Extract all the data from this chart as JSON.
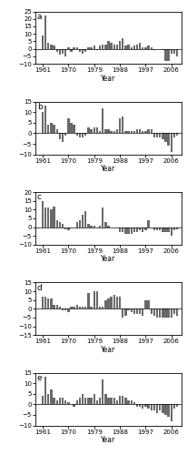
{
  "years": [
    1961,
    1962,
    1963,
    1964,
    1965,
    1966,
    1967,
    1968,
    1969,
    1970,
    1971,
    1972,
    1973,
    1974,
    1975,
    1976,
    1977,
    1978,
    1979,
    1980,
    1981,
    1982,
    1983,
    1984,
    1985,
    1986,
    1987,
    1988,
    1989,
    1990,
    1991,
    1992,
    1993,
    1994,
    1995,
    1996,
    1997,
    1998,
    1999,
    2000,
    2001,
    2002,
    2003,
    2004,
    2005,
    2006,
    2007,
    2008
  ],
  "zone_a": [
    9,
    22,
    4,
    3,
    2,
    -2,
    -4,
    -3,
    -5,
    1,
    -2,
    1,
    1,
    -2,
    -3,
    -2,
    1,
    1,
    2,
    -1,
    2,
    3,
    3,
    5,
    4,
    3,
    3,
    5,
    7,
    2,
    3,
    1,
    2,
    3,
    4,
    1,
    1,
    2,
    1,
    -1,
    0,
    0,
    -1,
    -8,
    -8,
    -3,
    -3,
    -5
  ],
  "zone_b": [
    10,
    13,
    4,
    5,
    4,
    2,
    -3,
    -4,
    -1,
    7,
    5,
    4,
    -1,
    -2,
    -2,
    -1,
    3,
    2,
    3,
    3,
    1,
    12,
    2,
    2,
    1,
    1,
    2,
    7,
    8,
    1,
    1,
    1,
    1,
    2,
    2,
    1,
    1,
    2,
    2,
    -2,
    -2,
    -2,
    -3,
    -4,
    -6,
    -9,
    -2,
    -1
  ],
  "zone_c": [
    15,
    11,
    11,
    10,
    12,
    4,
    3,
    2,
    -1,
    -2,
    0,
    0,
    3,
    4,
    7,
    9,
    2,
    1,
    1,
    0,
    1,
    11,
    3,
    1,
    0,
    0,
    0,
    -3,
    -3,
    -4,
    -4,
    -4,
    -3,
    -3,
    -2,
    -3,
    -2,
    4,
    0,
    -2,
    -2,
    -2,
    -3,
    -3,
    -3,
    -5,
    -2,
    -1
  ],
  "zone_d": [
    7,
    7,
    6,
    6,
    2,
    2,
    1,
    -1,
    -1,
    -2,
    1,
    1,
    2,
    1,
    1,
    1,
    9,
    1,
    10,
    10,
    1,
    1,
    5,
    6,
    7,
    8,
    7,
    7,
    -5,
    -4,
    -1,
    -2,
    -3,
    -3,
    -3,
    -4,
    5,
    5,
    -3,
    -4,
    -5,
    -5,
    -5,
    -5,
    -5,
    -5,
    -3,
    -4
  ],
  "zone_e": [
    4,
    13,
    5,
    7,
    3,
    2,
    3,
    3,
    2,
    1,
    0,
    -1,
    2,
    3,
    5,
    3,
    3,
    3,
    5,
    2,
    3,
    12,
    5,
    3,
    3,
    3,
    2,
    4,
    4,
    3,
    2,
    2,
    1,
    -1,
    -1,
    -2,
    -1,
    -2,
    -3,
    -3,
    -4,
    -3,
    -4,
    -5,
    -6,
    -8,
    -2,
    -1
  ],
  "ylim_a": [
    -10,
    25
  ],
  "ylim_b": [
    -10,
    15
  ],
  "ylim_c": [
    -10,
    20
  ],
  "ylim_d": [
    -15,
    15
  ],
  "ylim_e": [
    -10,
    15
  ],
  "yticks_a": [
    -10,
    -5,
    0,
    5,
    10,
    15,
    20,
    25
  ],
  "yticks_b": [
    -10,
    -5,
    0,
    5,
    10,
    15
  ],
  "yticks_c": [
    -10,
    -5,
    0,
    5,
    10,
    15,
    20
  ],
  "yticks_d": [
    -15,
    -10,
    -5,
    0,
    5,
    10,
    15
  ],
  "yticks_e": [
    -10,
    -5,
    0,
    5,
    10,
    15
  ],
  "labels": [
    "a",
    "b",
    "c",
    "d",
    "e"
  ],
  "xticks": [
    1961,
    1970,
    1979,
    1988,
    1997,
    2006
  ],
  "bar_color": "#696969",
  "xlabel": "Year"
}
